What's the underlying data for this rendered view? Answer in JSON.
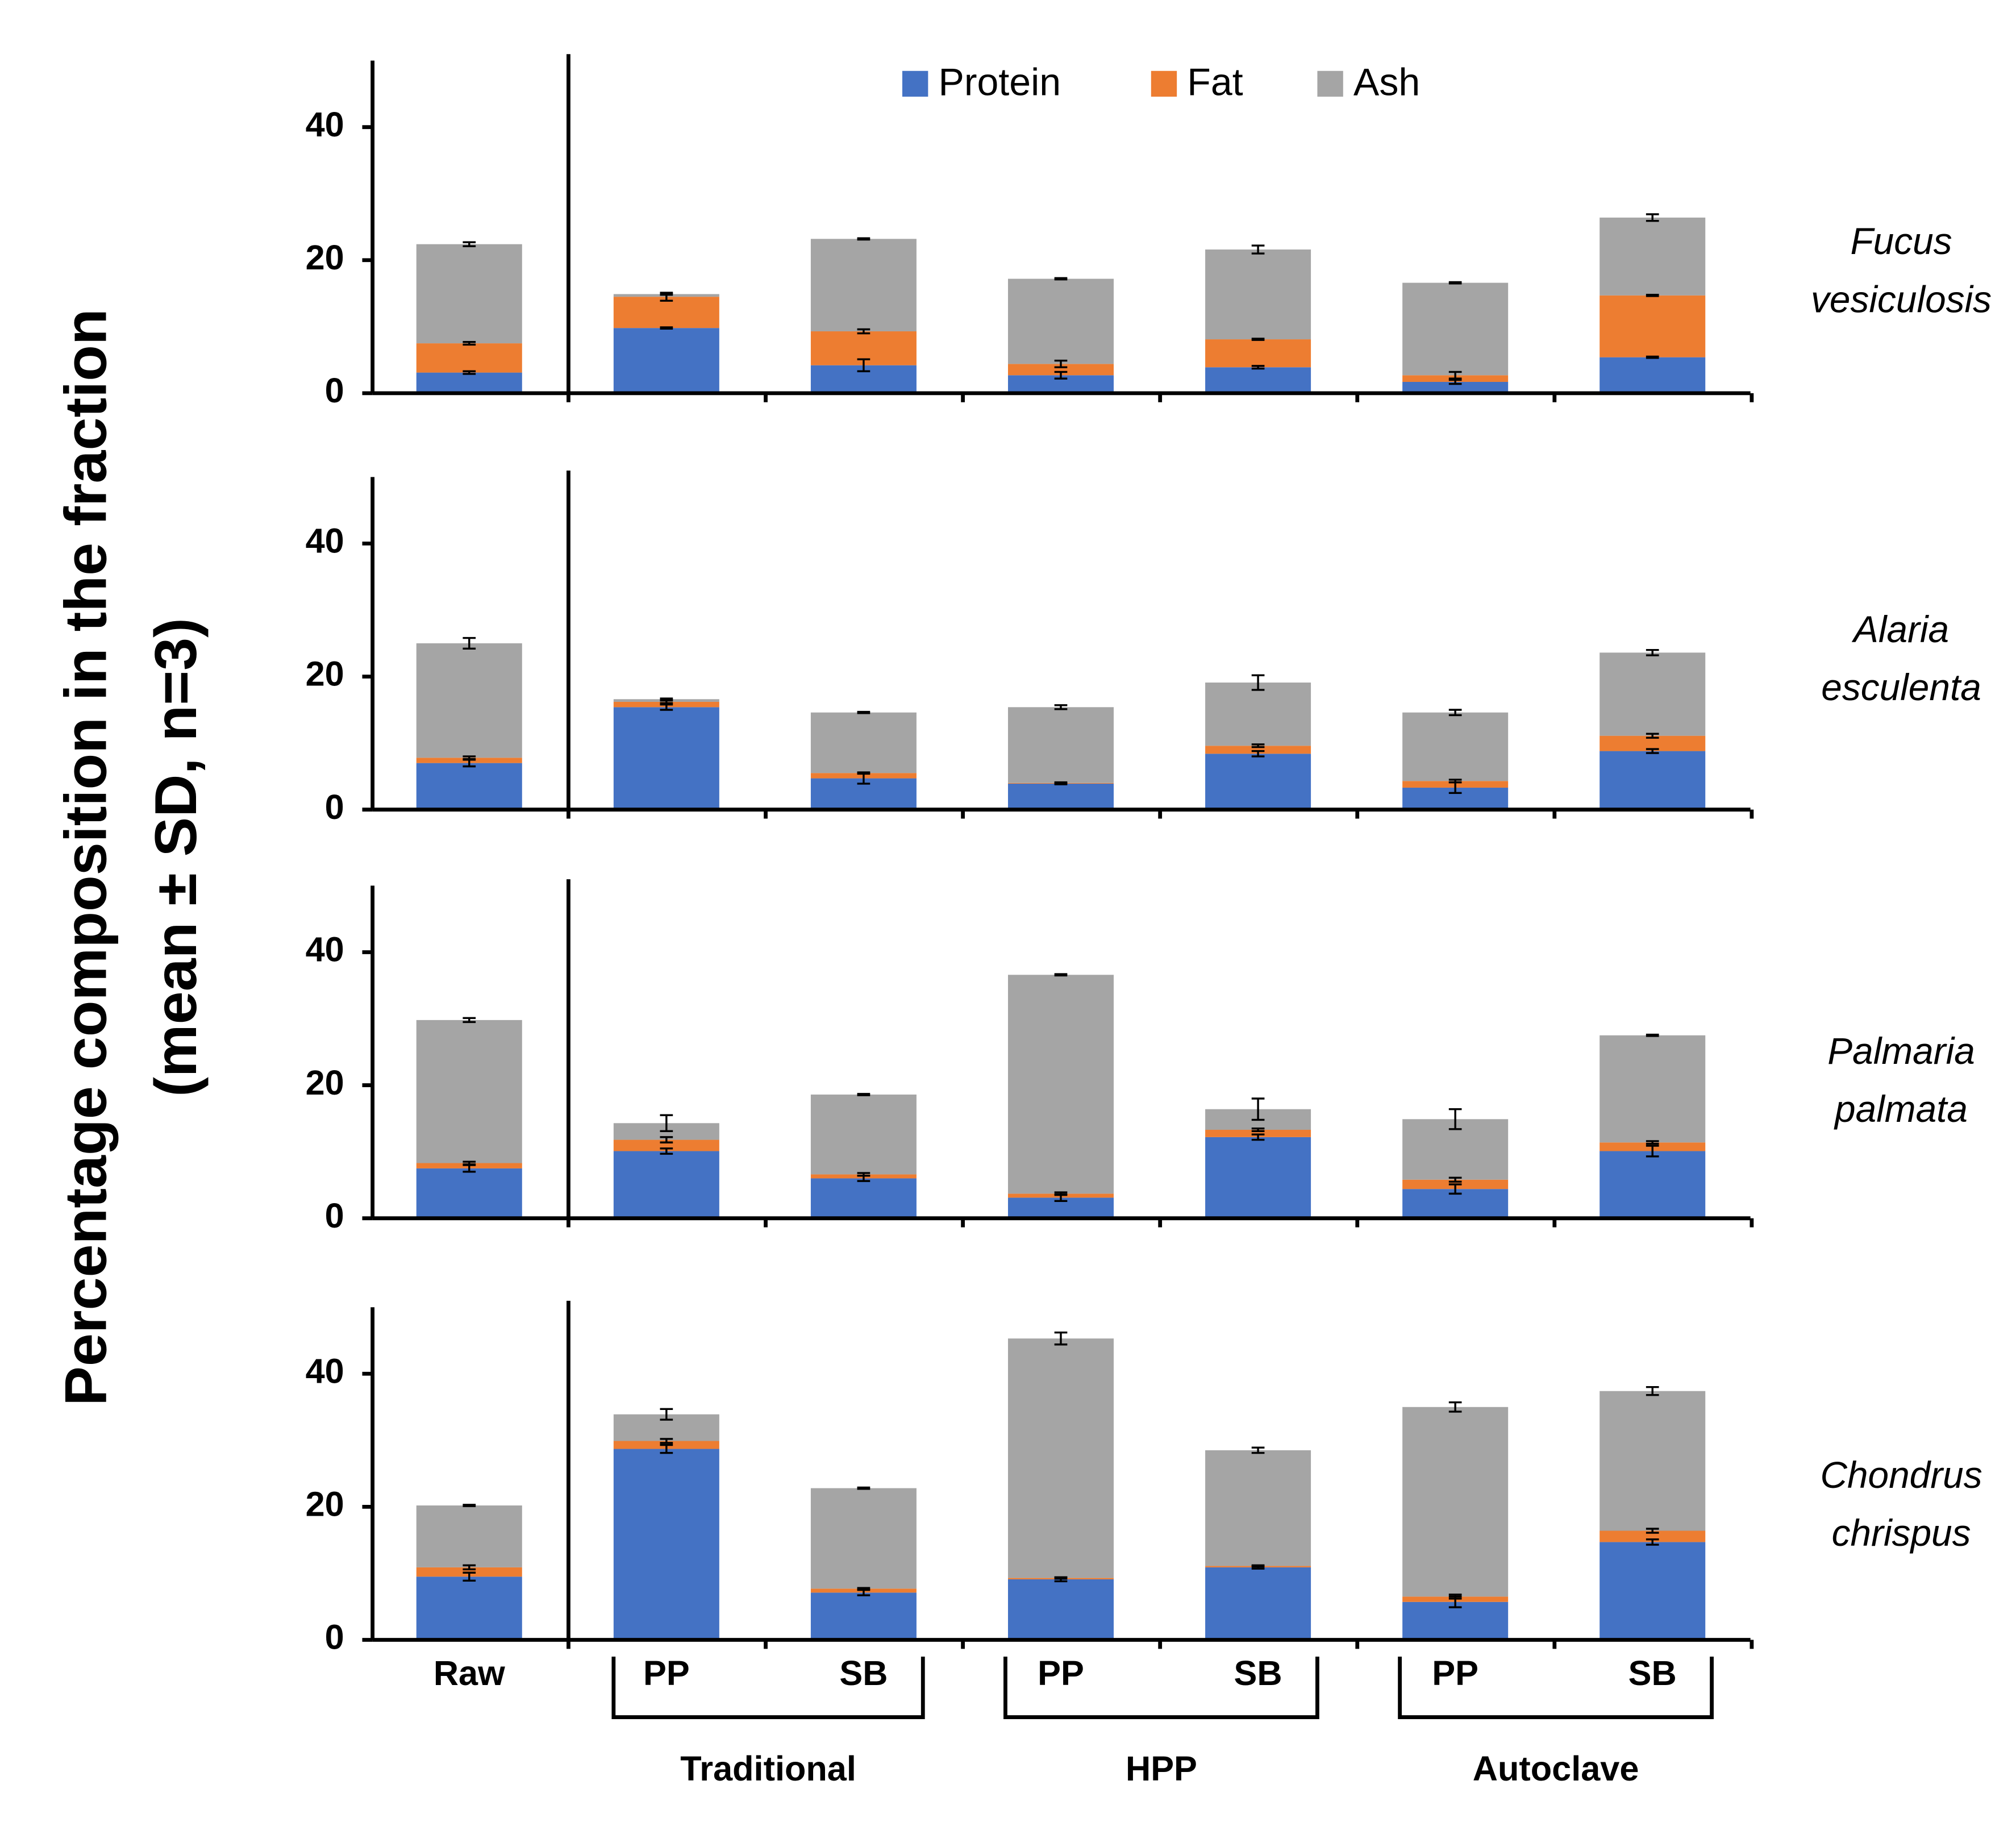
{
  "figure": {
    "ylabel": [
      "Percentage composition in the fraction",
      "(mean ± SD, n=3)"
    ],
    "groups": [
      "Traditional",
      "HPP",
      "Autoclave"
    ]
  },
  "chart_data": [
    {
      "type": "bar",
      "stacked": true,
      "title": [
        "Fucus",
        "vesiculosis"
      ],
      "ylim": [
        0,
        50
      ],
      "yticks": [
        0,
        20,
        40
      ],
      "series": [
        {
          "name": "Protein",
          "color": "#4472c4",
          "values": [
            3.1,
            9.8,
            4.2,
            2.7,
            3.9,
            1.7,
            5.4
          ],
          "errors": [
            0.2,
            0.1,
            0.9,
            0.5,
            0.2,
            0.3,
            0.1
          ]
        },
        {
          "name": "Fat",
          "color": "#ed7d31",
          "values": [
            4.4,
            4.7,
            5.1,
            1.7,
            4.2,
            1.0,
            9.3
          ],
          "errors": [
            0.2,
            0.6,
            0.3,
            0.5,
            0.1,
            0.5,
            0.1
          ]
        },
        {
          "name": "Ash",
          "color": "#a5a5a5",
          "values": [
            14.9,
            0.4,
            13.9,
            12.8,
            13.5,
            13.9,
            11.7
          ],
          "errors": [
            0.3,
            0.1,
            0.1,
            0.1,
            0.6,
            0.1,
            0.5
          ]
        }
      ]
    },
    {
      "type": "bar",
      "stacked": true,
      "title": [
        "Alaria",
        "esculenta"
      ],
      "ylim": [
        0,
        50
      ],
      "yticks": [
        0,
        20,
        40
      ],
      "series": [
        {
          "color": "#4472c4",
          "values": [
            7.0,
            15.4,
            4.7,
            3.9,
            8.4,
            3.3,
            8.8
          ],
          "errors": [
            0.5,
            0.4,
            0.8,
            0.1,
            0.4,
            0.8,
            0.3
          ]
        },
        {
          "color": "#ed7d31",
          "values": [
            0.8,
            0.8,
            0.8,
            0.1,
            1.2,
            1.0,
            2.3
          ],
          "errors": [
            0.2,
            0.2,
            0.1,
            0.1,
            0.2,
            0.2,
            0.3
          ]
        },
        {
          "color": "#a5a5a5",
          "values": [
            17.2,
            0.4,
            9.1,
            11.4,
            9.5,
            10.3,
            12.5
          ],
          "errors": [
            0.8,
            0.1,
            0.1,
            0.3,
            1.1,
            0.4,
            0.4
          ]
        }
      ]
    },
    {
      "type": "bar",
      "stacked": true,
      "title": [
        "Palmaria",
        "palmata"
      ],
      "ylim": [
        0,
        50
      ],
      "yticks": [
        0,
        20,
        40
      ],
      "series": [
        {
          "color": "#4472c4",
          "values": [
            7.5,
            10.1,
            6.0,
            3.1,
            12.2,
            4.4,
            10.1
          ],
          "errors": [
            0.5,
            0.4,
            0.4,
            0.5,
            0.4,
            0.7,
            0.8
          ]
        },
        {
          "color": "#ed7d31",
          "values": [
            0.8,
            1.7,
            0.6,
            0.6,
            1.1,
            1.4,
            1.3
          ],
          "errors": [
            0.2,
            0.4,
            0.2,
            0.2,
            0.2,
            0.3,
            0.2
          ]
        },
        {
          "color": "#a5a5a5",
          "values": [
            21.5,
            2.5,
            12.0,
            32.9,
            3.1,
            9.1,
            16.1
          ],
          "errors": [
            0.3,
            1.2,
            0.1,
            0.1,
            1.6,
            1.5,
            0.1
          ]
        }
      ]
    },
    {
      "type": "bar",
      "stacked": true,
      "title": [
        "Chondrus",
        "chrispus"
      ],
      "ylim": [
        0,
        50
      ],
      "yticks": [
        0,
        20,
        40
      ],
      "categories": [
        "Raw",
        "PP",
        "SB",
        "PP",
        "SB",
        "PP",
        "SB"
      ],
      "series": [
        {
          "color": "#4472c4",
          "values": [
            9.5,
            28.7,
            7.1,
            9.1,
            10.9,
            5.7,
            14.7
          ],
          "errors": [
            0.6,
            0.6,
            0.4,
            0.3,
            0.2,
            0.8,
            0.4
          ]
        },
        {
          "color": "#ed7d31",
          "values": [
            1.4,
            1.2,
            0.6,
            0.2,
            0.2,
            0.8,
            1.7
          ],
          "errors": [
            0.3,
            0.3,
            0.1,
            0.1,
            0.1,
            0.3,
            0.3
          ]
        },
        {
          "color": "#a5a5a5",
          "values": [
            9.3,
            4.0,
            15.1,
            36.0,
            17.4,
            28.5,
            21.0
          ],
          "errors": [
            0.1,
            0.8,
            0.1,
            0.9,
            0.4,
            0.7,
            0.6
          ]
        }
      ]
    }
  ]
}
